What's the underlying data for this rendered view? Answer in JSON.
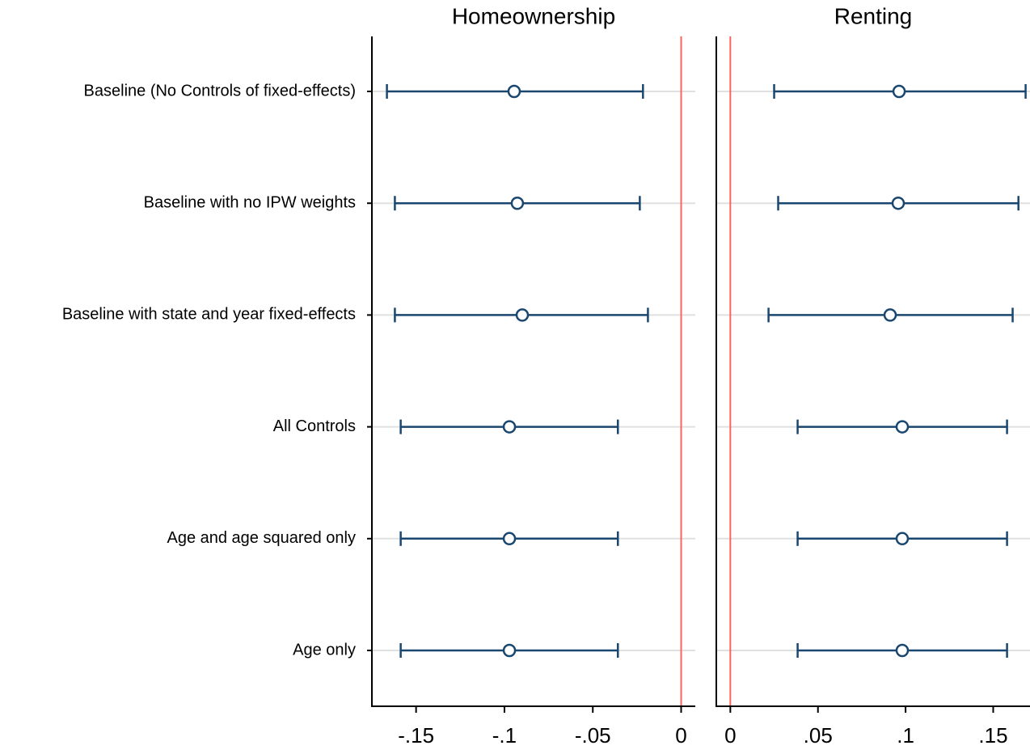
{
  "chart_data": [
    {
      "type": "coefplot",
      "title": "Homeownership",
      "categories": [
        "Baseline (No Controls of fixed-effects)",
        "Baseline with no IPW weights",
        "Baseline with state and year fixed-effects",
        "All Controls",
        "Age and age squared only",
        "Age only"
      ],
      "values": [
        -0.0945,
        -0.0927,
        -0.0899,
        -0.0972,
        -0.0972,
        -0.0972
      ],
      "lower": [
        -0.1665,
        -0.162,
        -0.162,
        -0.1587,
        -0.1587,
        -0.1587
      ],
      "upper": [
        -0.0216,
        -0.0234,
        -0.0188,
        -0.0358,
        -0.0358,
        -0.0358
      ],
      "color": "#1a476f",
      "xlim": [
        -0.175,
        0.008
      ],
      "xticks": [
        {
          "value": -0.15,
          "label": "-.15"
        },
        {
          "value": -0.1,
          "label": "-.1"
        },
        {
          "value": -0.05,
          "label": "-.05"
        },
        0
      ],
      "refline": 0,
      "refline_color": "#ff6060",
      "grid": true
    },
    {
      "type": "coefplot",
      "title": "Renting",
      "values": [
        0.0963,
        0.0958,
        0.0912,
        0.0981,
        0.0981,
        0.0981
      ],
      "lower": [
        0.025,
        0.0273,
        0.0218,
        0.0384,
        0.0384,
        0.0384
      ],
      "upper": [
        0.1685,
        0.1644,
        0.1611,
        0.1579,
        0.1579,
        0.1579
      ],
      "color": "#1a476f",
      "xlim": [
        -0.008,
        0.171
      ],
      "xticks": [
        0,
        {
          "value": 0.05,
          "label": ".05"
        },
        {
          "value": 0.1,
          "label": ".1"
        },
        {
          "value": 0.15,
          "label": ".15"
        }
      ],
      "refline": 0,
      "refline_color": "#ff6060",
      "grid": true
    }
  ]
}
